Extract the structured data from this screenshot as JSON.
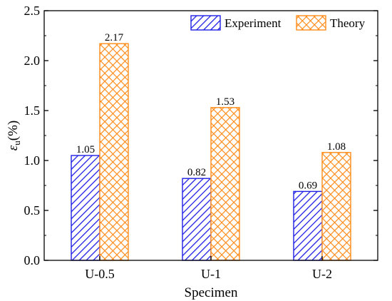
{
  "chart_data": {
    "type": "bar",
    "title": "",
    "xlabel": "Specimen",
    "ylabel_symbol": "ε",
    "ylabel_subscript": "u",
    "ylabel_unit": "(%)",
    "categories": [
      "U-0.5",
      "U-1",
      "U-2"
    ],
    "series": [
      {
        "name": "Experiment",
        "values": [
          1.05,
          0.82,
          0.69
        ],
        "color": "#1f1fe6",
        "pattern": "diagonal-hatch"
      },
      {
        "name": "Theory",
        "values": [
          2.17,
          1.53,
          1.08
        ],
        "color": "#ff8c1a",
        "pattern": "crosshatch"
      }
    ],
    "data_labels": [
      [
        "1.05",
        "0.82",
        "0.69"
      ],
      [
        "2.17",
        "1.53",
        "1.08"
      ]
    ],
    "ylim": [
      0,
      2.5
    ],
    "yticks": [
      "0.0",
      "0.5",
      "1.0",
      "1.5",
      "2.0",
      "2.5"
    ],
    "grid": false,
    "legend_position": "top-right"
  }
}
